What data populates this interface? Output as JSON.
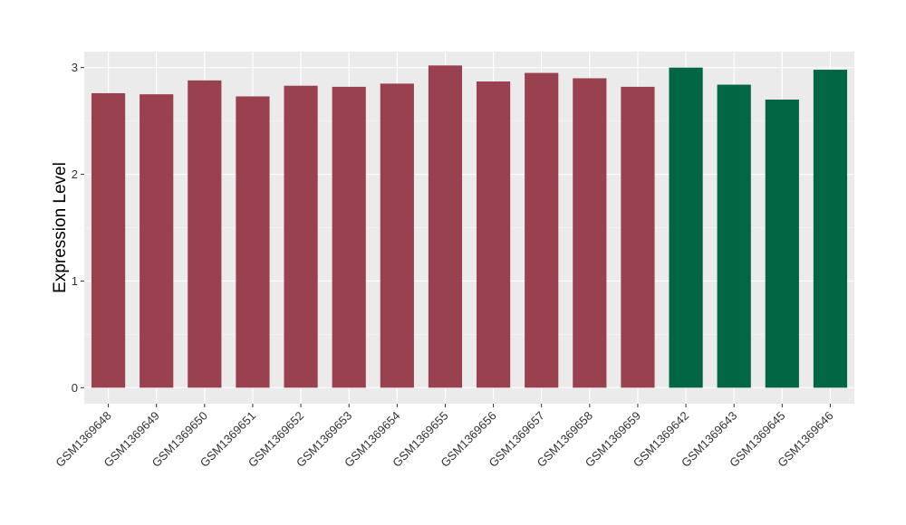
{
  "chart_data": {
    "type": "bar",
    "title": "",
    "xlabel": "",
    "ylabel": "Expression Level",
    "ylim": [
      -0.15,
      3.15
    ],
    "yticks": [
      0,
      1,
      2,
      3
    ],
    "grid": true,
    "categories": [
      "GSM1369648",
      "GSM1369649",
      "GSM1369650",
      "GSM1369651",
      "GSM1369652",
      "GSM1369653",
      "GSM1369654",
      "GSM1369655",
      "GSM1369656",
      "GSM1369657",
      "GSM1369658",
      "GSM1369659",
      "GSM1369642",
      "GSM1369643",
      "GSM1369645",
      "GSM1369646"
    ],
    "values": [
      2.76,
      2.75,
      2.88,
      2.73,
      2.83,
      2.82,
      2.85,
      3.02,
      2.87,
      2.95,
      2.9,
      2.82,
      3.0,
      2.84,
      2.7,
      2.98
    ],
    "groups": [
      0,
      0,
      0,
      0,
      0,
      0,
      0,
      0,
      0,
      0,
      0,
      0,
      1,
      1,
      1,
      1
    ],
    "colors": {
      "group_0": "#9a4150",
      "group_1": "#006644",
      "panel": "#ebebeb",
      "grid_major": "#ffffff",
      "grid_minor": "#f5f5f5"
    }
  }
}
